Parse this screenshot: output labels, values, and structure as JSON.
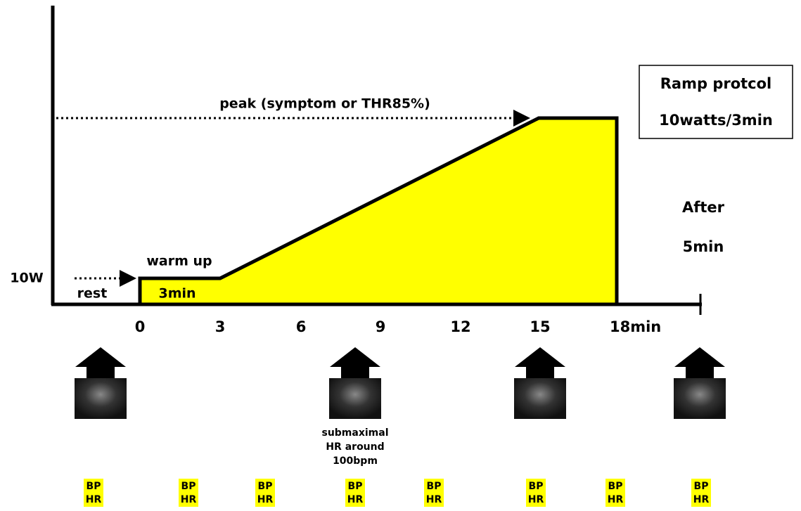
{
  "protocol_box": {
    "line1": "Ramp protcol",
    "line2": "10watts/3min"
  },
  "peak_label": "peak (symptom or THR85%)",
  "warmup": {
    "label": "warm up",
    "load": "10W",
    "duration": "3min"
  },
  "rest_label": "rest",
  "time_axis": {
    "ticks": [
      "0",
      "3",
      "6",
      "9",
      "12",
      "15",
      "18min"
    ]
  },
  "after": {
    "line1": "After",
    "line2": "5min"
  },
  "submaximal": {
    "line1": "submaximal",
    "line2": "HR around",
    "line3": "100bpm"
  },
  "measurements": [
    {
      "bp": "BP",
      "hr": "HR"
    },
    {
      "bp": "BP",
      "hr": "HR"
    },
    {
      "bp": "BP",
      "hr": "HR"
    },
    {
      "bp": "BP",
      "hr": "HR"
    },
    {
      "bp": "BP",
      "hr": "HR"
    },
    {
      "bp": "BP",
      "hr": "HR"
    },
    {
      "bp": "BP",
      "hr": "HR"
    },
    {
      "bp": "BP",
      "hr": "HR"
    }
  ]
}
